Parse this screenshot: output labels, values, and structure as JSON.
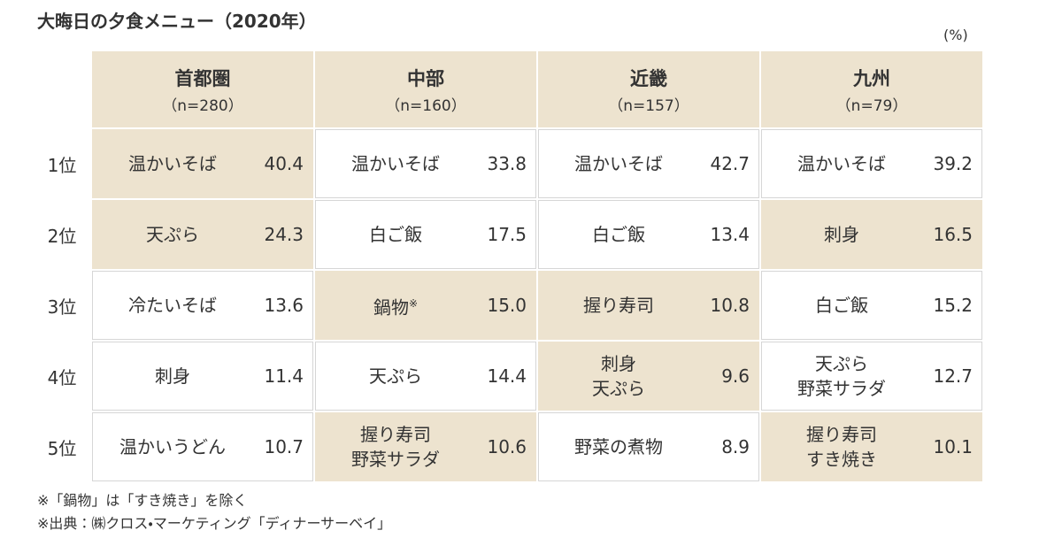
{
  "header": {
    "title": "大晦日の夕食メニュー（2020年）",
    "unit": "(%)"
  },
  "table": {
    "columns": [
      {
        "name": "首都圏",
        "n": "（n=280）"
      },
      {
        "name": "中部",
        "n": "（n=160）"
      },
      {
        "name": "近畿",
        "n": "（n=157）"
      },
      {
        "name": "九州",
        "n": "（n=79）"
      }
    ],
    "rows": [
      {
        "rank": "1位",
        "cells": [
          {
            "items": [
              "温かいそば"
            ],
            "value": "40.4"
          },
          {
            "items": [
              "温かいそば"
            ],
            "value": "33.8"
          },
          {
            "items": [
              "温かいそば"
            ],
            "value": "42.7"
          },
          {
            "items": [
              "温かいそば"
            ],
            "value": "39.2"
          }
        ]
      },
      {
        "rank": "2位",
        "cells": [
          {
            "items": [
              "天ぷら"
            ],
            "value": "24.3"
          },
          {
            "items": [
              "白ご飯"
            ],
            "value": "17.5"
          },
          {
            "items": [
              "白ご飯"
            ],
            "value": "13.4"
          },
          {
            "items": [
              "刺身"
            ],
            "value": "16.5"
          }
        ]
      },
      {
        "rank": "3位",
        "cells": [
          {
            "items": [
              "冷たいそば"
            ],
            "value": "13.6"
          },
          {
            "items": [
              "鍋物"
            ],
            "mark": "※",
            "value": "15.0"
          },
          {
            "items": [
              "握り寿司"
            ],
            "value": "10.8"
          },
          {
            "items": [
              "白ご飯"
            ],
            "value": "15.2"
          }
        ]
      },
      {
        "rank": "4位",
        "cells": [
          {
            "items": [
              "刺身"
            ],
            "value": "11.4"
          },
          {
            "items": [
              "天ぷら"
            ],
            "value": "14.4"
          },
          {
            "items": [
              "刺身",
              "天ぷら"
            ],
            "value": "9.6"
          },
          {
            "items": [
              "天ぷら",
              "野菜サラダ"
            ],
            "value": "12.7"
          }
        ]
      },
      {
        "rank": "5位",
        "cells": [
          {
            "items": [
              "温かいうどん"
            ],
            "value": "10.7"
          },
          {
            "items": [
              "握り寿司",
              "野菜サラダ"
            ],
            "value": "10.6"
          },
          {
            "items": [
              "野菜の煮物"
            ],
            "value": "8.9"
          },
          {
            "items": [
              "握り寿司",
              "すき焼き"
            ],
            "value": "10.1"
          }
        ]
      }
    ]
  },
  "notes": [
    "※「鍋物」は「すき焼き」を除く",
    "※出典：㈱クロス・マーケティング「ディナーサーベイ」"
  ]
}
